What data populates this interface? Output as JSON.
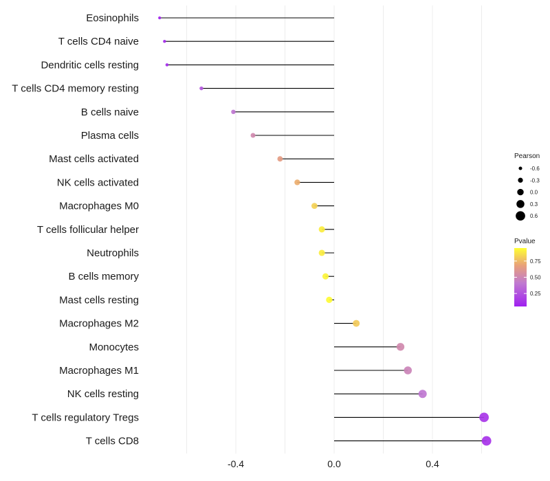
{
  "chart_data": {
    "type": "lollipop",
    "categories": [
      "Eosinophils",
      "T cells CD4 naive",
      "Dendritic cells resting",
      "T cells CD4 memory resting",
      "B cells naive",
      "Plasma cells",
      "Mast cells activated",
      "NK cells activated",
      "Macrophages M0",
      "T cells follicular helper",
      "Neutrophils",
      "B cells memory",
      "Mast cells resting",
      "Macrophages M2",
      "Monocytes",
      "Macrophages M1",
      "NK cells resting",
      "T cells regulatory  Tregs",
      "T cells CD8"
    ],
    "pearson": [
      -0.71,
      -0.69,
      -0.68,
      -0.54,
      -0.41,
      -0.33,
      -0.22,
      -0.15,
      -0.08,
      -0.05,
      -0.05,
      -0.035,
      -0.02,
      0.09,
      0.27,
      0.3,
      0.36,
      0.61,
      0.62
    ],
    "pvalue": [
      0.07,
      0.09,
      0.09,
      0.25,
      0.37,
      0.5,
      0.65,
      0.72,
      0.82,
      0.9,
      0.9,
      0.92,
      0.94,
      0.8,
      0.5,
      0.46,
      0.37,
      0.13,
      0.12
    ],
    "xlim": [
      -0.8,
      0.8
    ],
    "xticks": [
      -0.4,
      0.0,
      0.4
    ],
    "xtick_labels": [
      "-0.4",
      "0.0",
      "0.4"
    ],
    "xlabel": "",
    "ylabel": "",
    "grid": true,
    "legend_size": {
      "title": "Pearson",
      "values": [
        -0.6,
        -0.3,
        0.0,
        0.3,
        0.6
      ],
      "labels": [
        "-0.6",
        "-0.3",
        "0.0",
        "0.3",
        "0.6"
      ]
    },
    "legend_color": {
      "title": "Pvalue",
      "ticks": [
        0.25,
        0.5,
        0.75
      ],
      "labels": [
        "0.25",
        "0.50",
        "0.75"
      ],
      "range": [
        0.05,
        0.95
      ],
      "colors": [
        "#a020f0",
        "#c07ad0",
        "#e8a07a",
        "#ffff33"
      ]
    }
  }
}
